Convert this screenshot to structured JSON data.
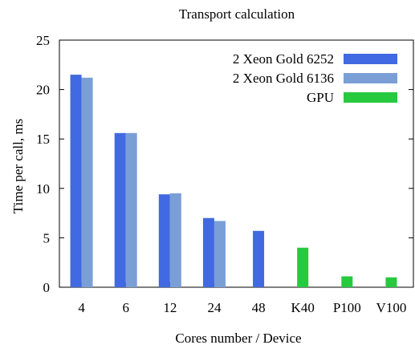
{
  "chart_data": {
    "type": "bar",
    "title": "Transport calculation",
    "xlabel": "Cores number / Device",
    "ylabel": "Time per call, ms",
    "ylim": [
      0,
      25
    ],
    "yticks": [
      "0",
      "5",
      "10",
      "15",
      "20",
      "25"
    ],
    "categories": [
      "4",
      "6",
      "12",
      "24",
      "48",
      "K40",
      "P100",
      "V100"
    ],
    "grid": false,
    "legend_position": "top-right",
    "series": [
      {
        "name": "2 Xeon Gold 6252",
        "color": "#4169e1",
        "values": [
          21.5,
          15.6,
          9.4,
          7.0,
          5.7,
          null,
          null,
          null
        ]
      },
      {
        "name": "2 Xeon Gold 6136",
        "color": "#7a9fd6",
        "values": [
          21.2,
          15.6,
          9.5,
          6.7,
          null,
          null,
          null,
          null
        ]
      },
      {
        "name": "GPU",
        "color": "#27c93f",
        "values": [
          null,
          null,
          null,
          null,
          null,
          4.0,
          1.1,
          1.0
        ]
      }
    ]
  }
}
